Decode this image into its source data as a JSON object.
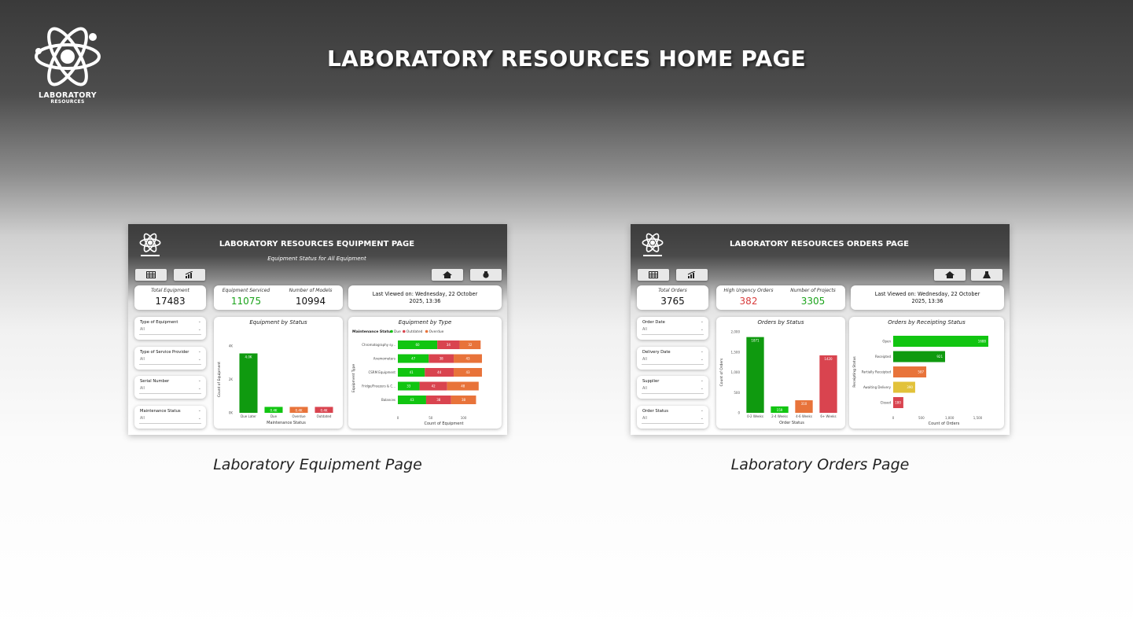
{
  "header": {
    "logo_text": "LABORATORY",
    "logo_subtext": "RESOURCES",
    "title": "LABORATORY RESOURCES HOME PAGE"
  },
  "colors": {
    "green": "#0f9a0f",
    "bright_green": "#11c511",
    "red": "#d9444f",
    "orange": "#e8733a",
    "yellow": "#e2c23a"
  },
  "pages": [
    {
      "caption": "Laboratory Equipment Page",
      "title": "LABORATORY RESOURCES EQUIPMENT PAGE",
      "subtitle": "Equipment Status for All Equipment",
      "kpis": {
        "total_label": "Total Equipment",
        "total_value": "17483",
        "a_label": "Equipment Serviced",
        "a_value": "11075",
        "b_label": "Number of Models",
        "b_value": "10994"
      },
      "last_viewed": "Last Viewed on: Wednesday, 22 October",
      "last_viewed_time": "2025, 13:36",
      "slicers": [
        {
          "label": "Type of Equipment",
          "value": "All"
        },
        {
          "label": "Type of Service Provider",
          "value": "All"
        },
        {
          "label": "Serial Number",
          "value": "All"
        },
        {
          "label": "Maintenance Status",
          "value": "All"
        }
      ],
      "nav_icons": [
        "table-icon",
        "chart-icon",
        "home-icon",
        "orders-icon"
      ],
      "chart_data": [
        {
          "type": "bar",
          "title": "Equipment by Status",
          "xlabel": "Maintenance Status",
          "ylabel": "Count of Equipment",
          "categories": [
            "Due Later",
            "Due",
            "Overdue",
            "Outdated"
          ],
          "values": [
            4.0,
            0.4,
            0.4,
            0.4
          ],
          "data_labels": [
            "4.0K",
            "0.4K",
            "0.4K",
            "0.4K"
          ],
          "colors": [
            "#0f9a0f",
            "#11c511",
            "#e8733a",
            "#d9444f"
          ],
          "ytick_labels": [
            "4K",
            "2K",
            "0K"
          ]
        },
        {
          "type": "bar",
          "title": "Equipment by Type",
          "xlabel": "Count of Equipment",
          "ylabel": "Equipment Type",
          "legend_title": "Maintenance Status",
          "legend": [
            "Due",
            "Outdated",
            "Overdue"
          ],
          "categories": [
            "Chromatography sy...",
            "Anemometers",
            "CSRM Equipment",
            "Fridge/Freezers & C...",
            "Balances"
          ],
          "series": [
            {
              "name": "Due",
              "color": "#11c511",
              "values": [
                60,
                47,
                41,
                33,
                43
              ]
            },
            {
              "name": "Outdated",
              "color": "#d9444f",
              "values": [
                34,
                38,
                44,
                42,
                38
              ]
            },
            {
              "name": "Overdue",
              "color": "#e8733a",
              "values": [
                32,
                43,
                43,
                48,
                38
              ]
            }
          ],
          "xticks": [
            0,
            50,
            100
          ]
        }
      ]
    },
    {
      "caption": "Laboratory Orders Page",
      "title": "LABORATORY RESOURCES ORDERS PAGE",
      "subtitle": "",
      "kpis": {
        "total_label": "Total Orders",
        "total_value": "3765",
        "a_label": "High Urgency Orders",
        "a_value": "382",
        "b_label": "Number of Projects",
        "b_value": "3305"
      },
      "last_viewed": "Last Viewed on: Wednesday, 22 October",
      "last_viewed_time": "2025, 13:36",
      "slicers": [
        {
          "label": "Order Date",
          "value": "All"
        },
        {
          "label": "Delivery Date",
          "value": "All"
        },
        {
          "label": "Supplier",
          "value": "All"
        },
        {
          "label": "Order Status",
          "value": "All"
        }
      ],
      "nav_icons": [
        "table-icon",
        "chart-icon",
        "home-icon",
        "flask-icon"
      ],
      "chart_data": [
        {
          "type": "bar",
          "title": "Orders by Status",
          "xlabel": "Order Status",
          "ylabel": "Count of Orders",
          "categories": [
            "0-2 Weeks",
            "2-4 Weeks",
            "4-6 Weeks",
            "6+ Weeks"
          ],
          "values": [
            1871,
            159,
            310,
            1420
          ],
          "data_labels": [
            "1871",
            "159",
            "310",
            "1420"
          ],
          "colors": [
            "#0f9a0f",
            "#11c511",
            "#e8733a",
            "#d9444f"
          ],
          "ytick_labels": [
            "2,000",
            "1,500",
            "1,000",
            "500",
            "0"
          ],
          "ylim": [
            0,
            2000
          ]
        },
        {
          "type": "bar",
          "title": "Orders by Receipting Status",
          "xlabel": "Count of Orders",
          "ylabel": "Receipting Status",
          "categories": [
            "Open",
            "Receipted",
            "Partially Receipted",
            "Awaiting Delivery",
            "Closed"
          ],
          "values": [
            1688,
            921,
            587,
            390,
            180
          ],
          "colors": [
            "#11c511",
            "#0f9a0f",
            "#e8733a",
            "#e2c23a",
            "#d9444f"
          ],
          "xticks": [
            "0",
            "500",
            "1,000",
            "1,500"
          ],
          "xlim": [
            0,
            1800
          ]
        }
      ]
    }
  ]
}
